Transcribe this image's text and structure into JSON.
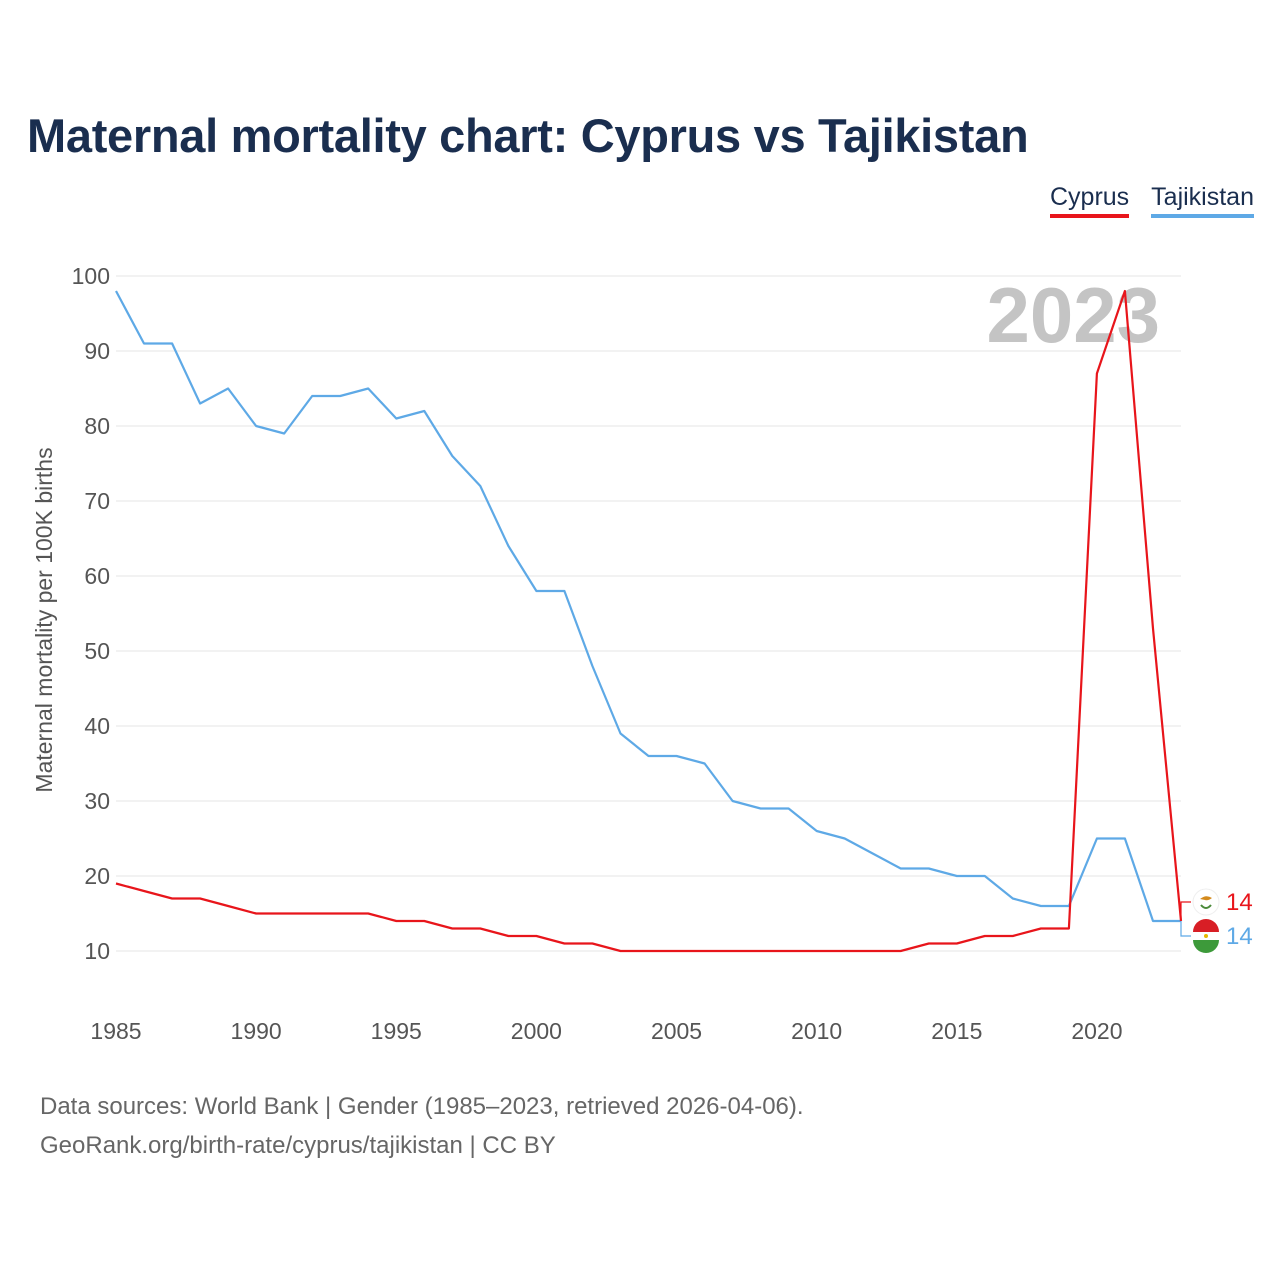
{
  "title": "Maternal mortality chart: Cyprus vs Tajikistan",
  "legend": {
    "cyprus": "Cyprus",
    "tajikistan": "Tajikistan"
  },
  "colors": {
    "cyprus": "#e8151b",
    "tajikistan": "#5ea9e6",
    "grid": "#e6e6e6",
    "title": "#1a2e4f"
  },
  "chart_data": {
    "type": "line",
    "ylabel": "Maternal mortality per 100K births",
    "xlabel": "",
    "ylim": [
      0,
      100
    ],
    "xlim": [
      1985,
      2023
    ],
    "yticks": [
      10,
      20,
      30,
      40,
      50,
      60,
      70,
      80,
      90,
      100
    ],
    "xticks": [
      1985,
      1990,
      1995,
      2000,
      2005,
      2010,
      2015,
      2020
    ],
    "year_watermark": "2023",
    "x": [
      1985,
      1986,
      1987,
      1988,
      1989,
      1990,
      1991,
      1992,
      1993,
      1994,
      1995,
      1996,
      1997,
      1998,
      1999,
      2000,
      2001,
      2002,
      2003,
      2004,
      2005,
      2006,
      2007,
      2008,
      2009,
      2010,
      2011,
      2012,
      2013,
      2014,
      2015,
      2016,
      2017,
      2018,
      2019,
      2020,
      2021,
      2022,
      2023
    ],
    "series": [
      {
        "name": "Cyprus",
        "color": "#e8151b",
        "end_label": "14",
        "values": [
          19,
          18,
          17,
          17,
          16,
          15,
          15,
          15,
          15,
          15,
          14,
          14,
          13,
          13,
          12,
          12,
          11,
          11,
          10,
          10,
          10,
          10,
          10,
          10,
          10,
          10,
          10,
          10,
          10,
          11,
          11,
          12,
          12,
          13,
          13,
          87,
          98,
          53,
          14
        ]
      },
      {
        "name": "Tajikistan",
        "color": "#5ea9e6",
        "end_label": "14",
        "values": [
          98,
          91,
          91,
          83,
          85,
          80,
          79,
          84,
          84,
          85,
          81,
          82,
          76,
          72,
          64,
          58,
          58,
          48,
          39,
          36,
          36,
          35,
          30,
          29,
          29,
          26,
          25,
          23,
          21,
          21,
          20,
          20,
          17,
          16,
          16,
          25,
          25,
          14,
          14
        ]
      }
    ]
  },
  "footer": {
    "line1": "Data sources: World Bank | Gender (1985–2023, retrieved 2026-04-06).",
    "line2": "GeoRank.org/birth-rate/cyprus/tajikistan | CC BY"
  }
}
